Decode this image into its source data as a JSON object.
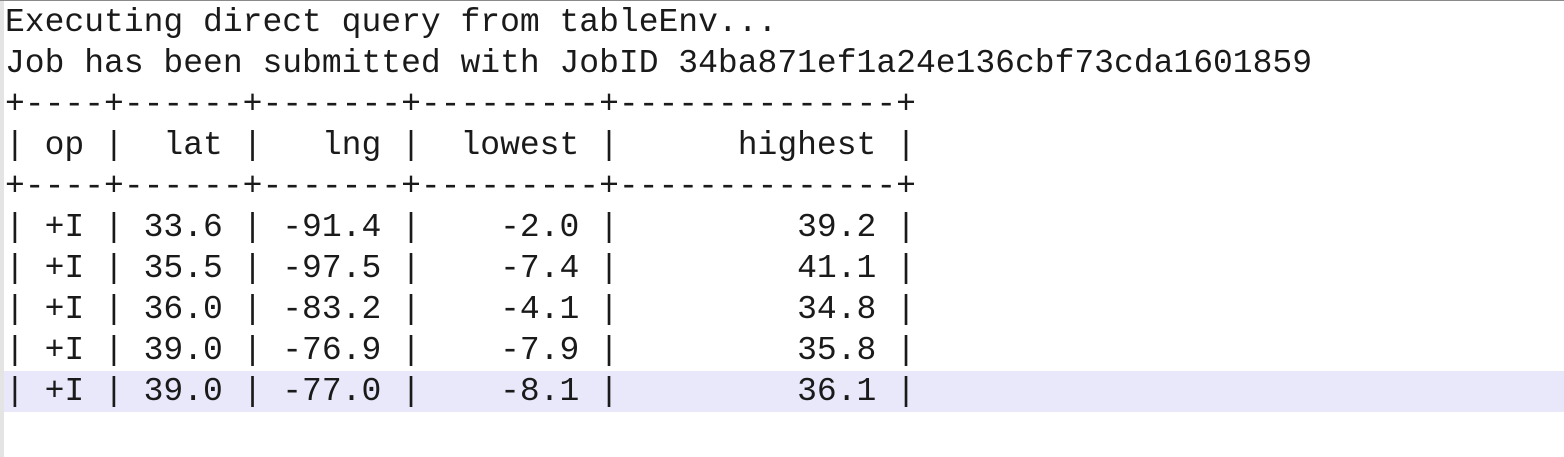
{
  "editor": {
    "lines": [
      "Executing direct query from tableEnv...",
      "Job has been submitted with JobID 34ba871ef1a24e136cbf73cda1601859",
      "+----+------+-------+---------+--------------+",
      "| op |  lat |   lng |  lowest |      highest |",
      "+----+------+-------+---------+--------------+",
      "| +I | 33.6 | -91.4 |    -2.0 |         39.2 |",
      "| +I | 35.5 | -97.5 |    -7.4 |         41.1 |",
      "| +I | 36.0 | -83.2 |    -4.1 |         34.8 |",
      "| +I | 39.0 | -76.9 |    -7.9 |         35.8 |",
      "| +I | 39.0 | -77.0 |    -8.1 |         36.1 |"
    ],
    "current_line_color": "#e8e8fa"
  }
}
